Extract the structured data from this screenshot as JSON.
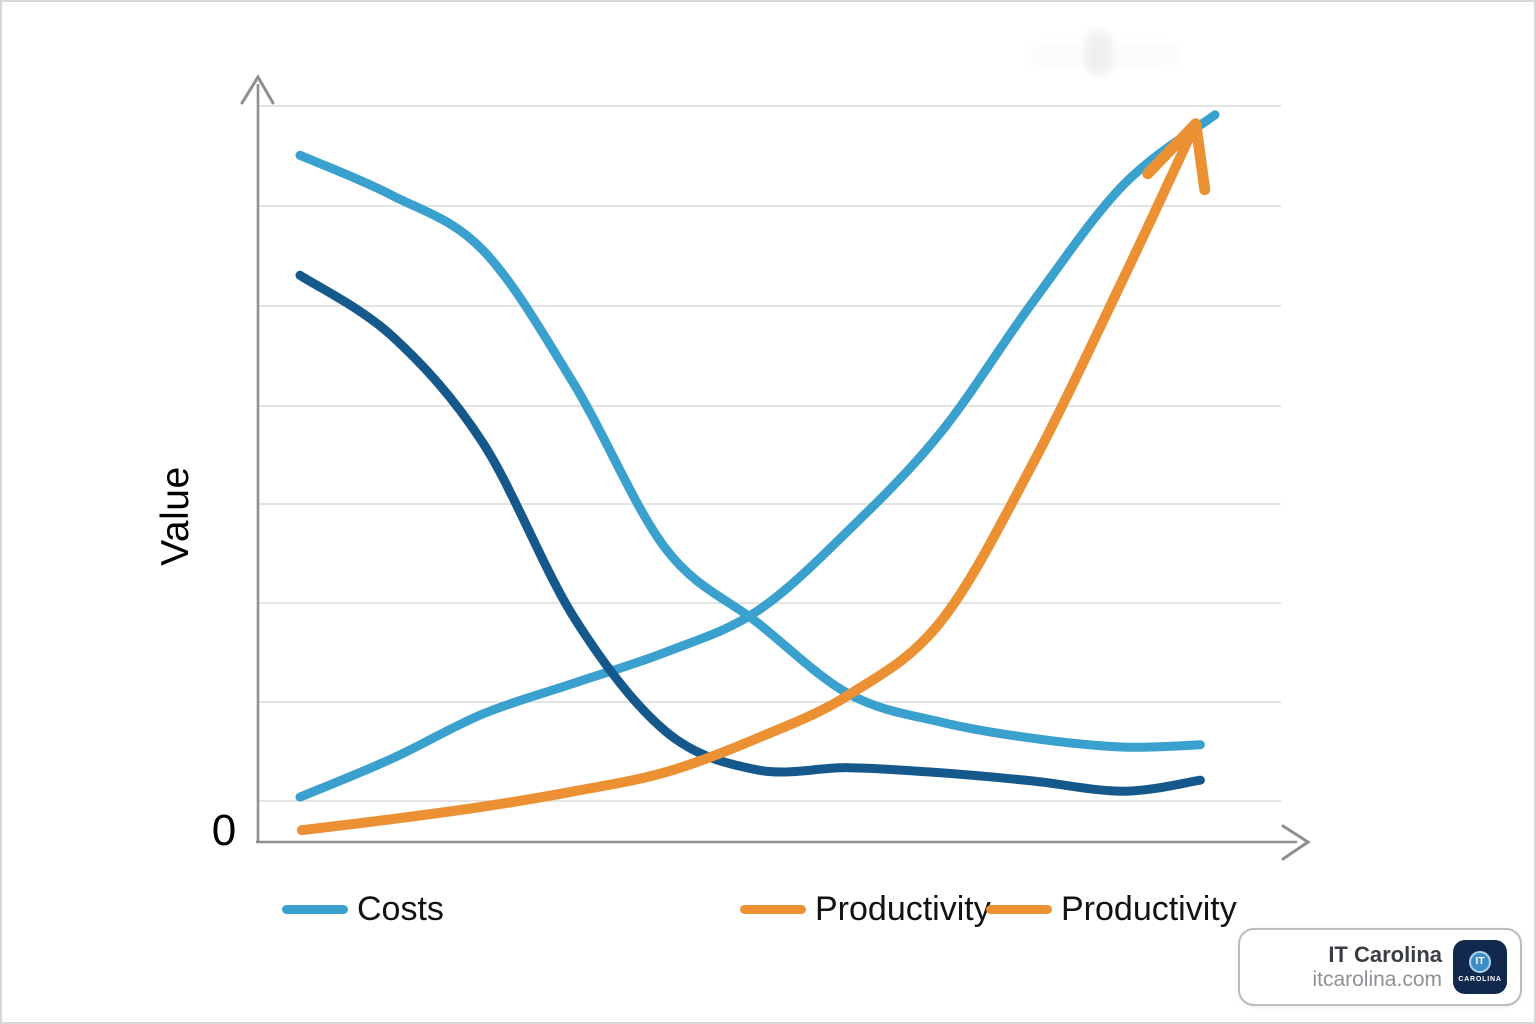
{
  "page": {
    "background": "#ffffff",
    "frame_color": "#d8d8d8"
  },
  "chart_data": {
    "type": "line",
    "title": "",
    "xlabel": "",
    "ylabel": "Value",
    "origin_label": "0",
    "grid": "horizontal-only",
    "legend_position": "bottom",
    "axes": {
      "x_min": 0,
      "x_max": 100,
      "y_min": 0,
      "y_max": 100,
      "x_tick_labels": [],
      "y_tick_labels": [
        "0"
      ],
      "style": "open arrows on both axes, only origin labeled"
    },
    "colors": {
      "light_blue": "#3AA1CF",
      "dark_blue": "#15588C",
      "orange": "#EC9133",
      "gridline": "#dcdcdc",
      "axis": "#8f8f8f"
    },
    "series": [
      {
        "name": "costs-falling",
        "legend_label": "Costs",
        "color": "#3AA1CF",
        "width": 9,
        "x": [
          0,
          10,
          20,
          30,
          40,
          50,
          60,
          70,
          80,
          90,
          98.4
        ],
        "y": [
          93.3,
          87.9,
          80.4,
          62.1,
          39.8,
          29.8,
          20.1,
          16.3,
          14.1,
          12.9,
          13.2
        ]
      },
      {
        "name": "costs-rising",
        "legend_label": "Costs",
        "color": "#3AA1CF",
        "width": 9,
        "x": [
          0,
          10,
          20,
          30,
          40,
          50,
          60,
          70,
          80,
          90,
          100
        ],
        "y": [
          6.1,
          11.3,
          17.4,
          21.6,
          25.8,
          31.4,
          42.4,
          55.6,
          73.2,
          89.3,
          98.8
        ]
      },
      {
        "name": "dark-blue-falling",
        "legend_label": "",
        "color": "#15588C",
        "width": 9,
        "x": [
          0,
          10,
          20,
          30,
          40,
          50,
          60,
          70,
          80,
          90,
          98.4
        ],
        "y": [
          77.0,
          68.8,
          54.2,
          30.4,
          15.0,
          9.8,
          10.1,
          9.4,
          8.3,
          6.9,
          8.4
        ]
      },
      {
        "name": "productivity",
        "legend_label": "Productivity",
        "color": "#EC9133",
        "width": 10,
        "arrow_end": true,
        "x": [
          0.2,
          10,
          20,
          30,
          40,
          50,
          60,
          70,
          80,
          90,
          97.9
        ],
        "y": [
          1.6,
          3.1,
          4.8,
          6.9,
          9.5,
          14.1,
          20.0,
          29.9,
          51.2,
          76.6,
          97.6
        ]
      }
    ],
    "legend": [
      {
        "label": "Costs",
        "color": "#3AA1CF"
      },
      {
        "label": "Productivity",
        "color": "#EC9133"
      },
      {
        "label": "Productivity",
        "color": "#EC9133"
      }
    ]
  },
  "watermark": {
    "title": "IT Carolina",
    "url": "itcarolina.com",
    "logo_circle_text": "IT",
    "logo_caption": "CAROLINA"
  }
}
